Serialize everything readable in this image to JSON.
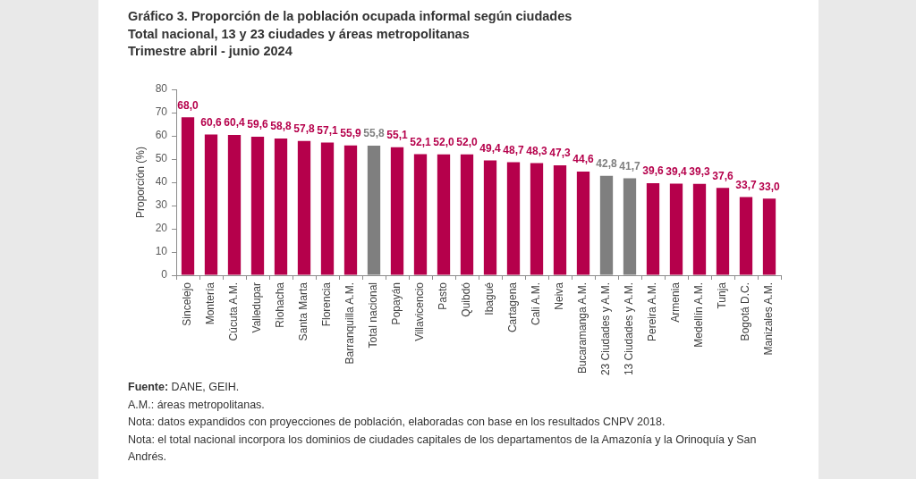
{
  "chart_data": {
    "type": "bar",
    "title": "Gráfico 3. Proporción de la población ocupada informal según ciudades",
    "subtitle": "Total nacional, 13 y 23 ciudades y áreas metropolitanas\nTrimestre abril - junio 2024",
    "ylabel": "Proporción (%)",
    "categories": [
      "Sincelejo",
      "Montería",
      "Cúcuta A.M.",
      "Valledupar",
      "Riohacha",
      "Santa Marta",
      "Florencia",
      "Barranquilla A.M.",
      "Total nacional",
      "Popayán",
      "Villavicencio",
      "Pasto",
      "Quibdó",
      "Ibagué",
      "Cartagena",
      "Cali A.M.",
      "Neiva",
      "Bucaramanga A.M.",
      "23 Ciudades y A.M.",
      "13 Ciudades y A.M.",
      "Pereira A.M.",
      "Armenia",
      "Medellín A.M.",
      "Tunja",
      "Bogotá D.C.",
      "Manizales A.M."
    ],
    "values": [
      68.0,
      60.6,
      60.4,
      59.6,
      58.8,
      57.8,
      57.1,
      55.9,
      55.8,
      55.1,
      52.1,
      52.0,
      52.0,
      49.4,
      48.7,
      48.3,
      47.3,
      44.6,
      42.8,
      41.7,
      39.6,
      39.4,
      39.3,
      37.6,
      33.7,
      33.0
    ],
    "value_labels": [
      "68,0",
      "60,6",
      "60,4",
      "59,6",
      "58,8",
      "57,8",
      "57,1",
      "55,9",
      "55,8",
      "55,1",
      "52,1",
      "52,0",
      "52,0",
      "49,4",
      "48,7",
      "48,3",
      "47,3",
      "44,6",
      "42,8",
      "41,7",
      "39,6",
      "39,4",
      "39,3",
      "37,6",
      "33,7",
      "33,0"
    ],
    "colors": [
      "#b5004b",
      "#b5004b",
      "#b5004b",
      "#b5004b",
      "#b5004b",
      "#b5004b",
      "#b5004b",
      "#b5004b",
      "#7f7f7f",
      "#b5004b",
      "#b5004b",
      "#b5004b",
      "#b5004b",
      "#b5004b",
      "#b5004b",
      "#b5004b",
      "#b5004b",
      "#b5004b",
      "#7f7f7f",
      "#7f7f7f",
      "#b5004b",
      "#b5004b",
      "#b5004b",
      "#b5004b",
      "#b5004b",
      "#b5004b"
    ],
    "ylim": [
      0,
      80
    ],
    "yticks": [
      0,
      10,
      20,
      30,
      40,
      50,
      60,
      70,
      80
    ],
    "grid": false,
    "annotations": [
      "Fuente: DANE, GEIH.",
      "A.M.: áreas metropolitanas.",
      "Nota: datos expandidos con proyecciones de población, elaboradas con base en los resultados CNPV 2018.",
      "Nota: el total nacional incorpora los dominios de ciudades capitales de los departamentos de la Amazonía y la Orinoquía y San Andrés."
    ]
  }
}
